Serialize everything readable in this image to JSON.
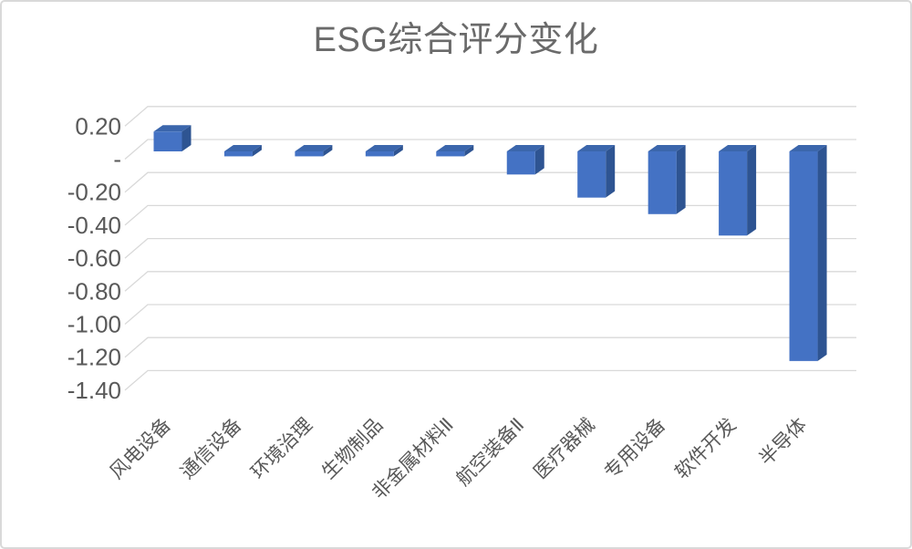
{
  "card": {
    "background": "#ffffff",
    "border_color": "#d9d9d9"
  },
  "chart_data": {
    "type": "bar",
    "style": "3d-column",
    "title": "ESG综合评分变化",
    "xlabel": "",
    "ylabel": "",
    "legend": "none",
    "grid": true,
    "categories": [
      "风电设备",
      "通信设备",
      "环境治理",
      "生物制品",
      "非金属材料Ⅱ",
      "航空装备Ⅱ",
      "医疗器械",
      "专用设备",
      "软件开发",
      "半导体"
    ],
    "values": [
      0.12,
      -0.03,
      -0.03,
      -0.03,
      -0.03,
      -0.14,
      -0.28,
      -0.38,
      -0.51,
      -1.27
    ],
    "ylim": [
      -1.4,
      0.2
    ],
    "y_axis": {
      "ticks": [
        {
          "label": "0.20",
          "value": 0.2
        },
        {
          "label": "-",
          "value": 0.0
        },
        {
          "label": "-0.20",
          "value": -0.2
        },
        {
          "label": "-0.40",
          "value": -0.4
        },
        {
          "label": "-0.60",
          "value": -0.6
        },
        {
          "label": "-0.80",
          "value": -0.8
        },
        {
          "label": "-1.00",
          "value": -1.0
        },
        {
          "label": "-1.20",
          "value": -1.2
        },
        {
          "label": "-1.40",
          "value": -1.4
        }
      ]
    },
    "colors": {
      "bar_front": "#4472c4",
      "bar_top": "#3b66ac",
      "bar_side": "#2e5492",
      "gridline": "#d9d9d9",
      "axis_text": "#595959",
      "title_text": "#6a6a6a"
    }
  }
}
